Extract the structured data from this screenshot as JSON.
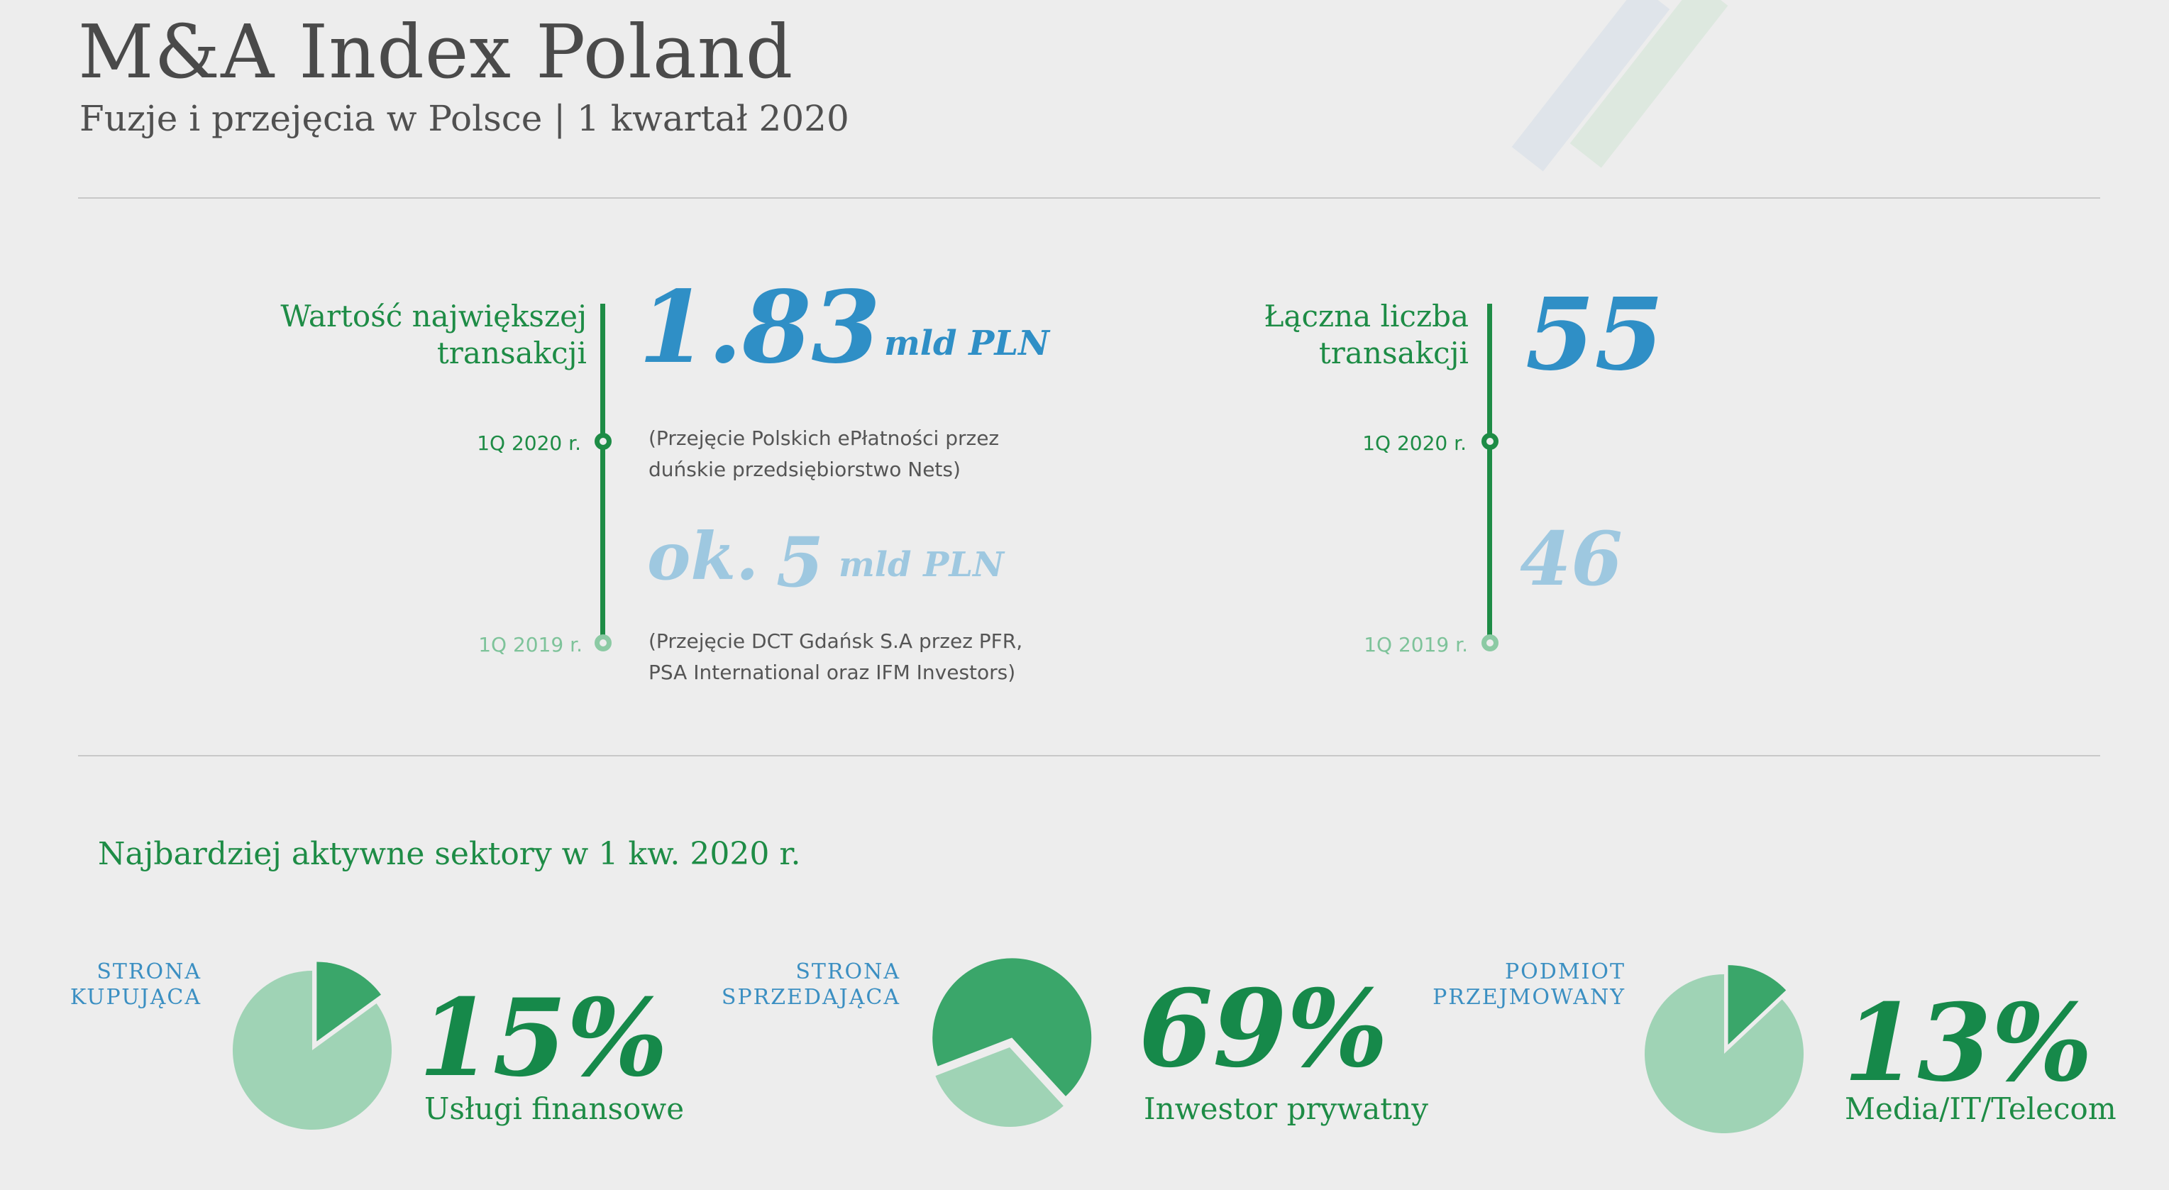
{
  "header": {
    "title": "M&A Index Poland",
    "subtitle": "Fuzje i przejęcia w Polsce | 1 kwartał 2020"
  },
  "colors": {
    "green_dark": "#1e8c46",
    "green_mid": "#3aa66a",
    "green_light": "#9fd3b5",
    "blue": "#2f8fc6",
    "blue_light": "#9ec8e0"
  },
  "largest_transaction": {
    "label": "Wartość największej transakcji",
    "current": {
      "period": "1Q 2020 r.",
      "value": "1.83",
      "unit": "mld PLN",
      "note_line1": "(Przejęcie Polskich ePłatności przez",
      "note_line2": "duńskie przedsiębiorstwo Nets)"
    },
    "previous": {
      "period": "1Q 2019 r.",
      "prefix": "ok.",
      "value": "5",
      "unit": "mld PLN",
      "note_line1": "(Przejęcie DCT Gdańsk S.A przez PFR,",
      "note_line2": "PSA International oraz IFM Investors)"
    }
  },
  "transaction_count": {
    "label_line1": "Łączna liczba",
    "label_line2": "transakcji",
    "current": {
      "period": "1Q 2020 r.",
      "value": "55"
    },
    "previous": {
      "period": "1Q 2019 r.",
      "value": "46"
    }
  },
  "sectors": {
    "heading": "Najbardziej aktywne sektory w 1 kw. 2020 r."
  },
  "chart_data": [
    {
      "type": "pie",
      "label_line1": "STRONA",
      "label_line2": "KUPUJĄCA",
      "percent_text": "15%",
      "category": "Usługi finansowe",
      "slices": [
        {
          "name": "Usługi finansowe",
          "value": 15
        },
        {
          "name": "",
          "value": 85
        }
      ]
    },
    {
      "type": "pie",
      "label_line1": "STRONA",
      "label_line2": "SPRZEDAJĄCA",
      "percent_text": "69%",
      "category": "Inwestor prywatny",
      "slices": [
        {
          "name": "Inwestor prywatny",
          "value": 69
        },
        {
          "name": "",
          "value": 31
        }
      ]
    },
    {
      "type": "pie",
      "label_line1": "PODMIOT",
      "label_line2": "PRZEJMOWANY",
      "percent_text": "13%",
      "category": "Media/IT/Telecom",
      "slices": [
        {
          "name": "Media/IT/Telecom",
          "value": 13
        },
        {
          "name": "",
          "value": 87
        }
      ]
    }
  ]
}
